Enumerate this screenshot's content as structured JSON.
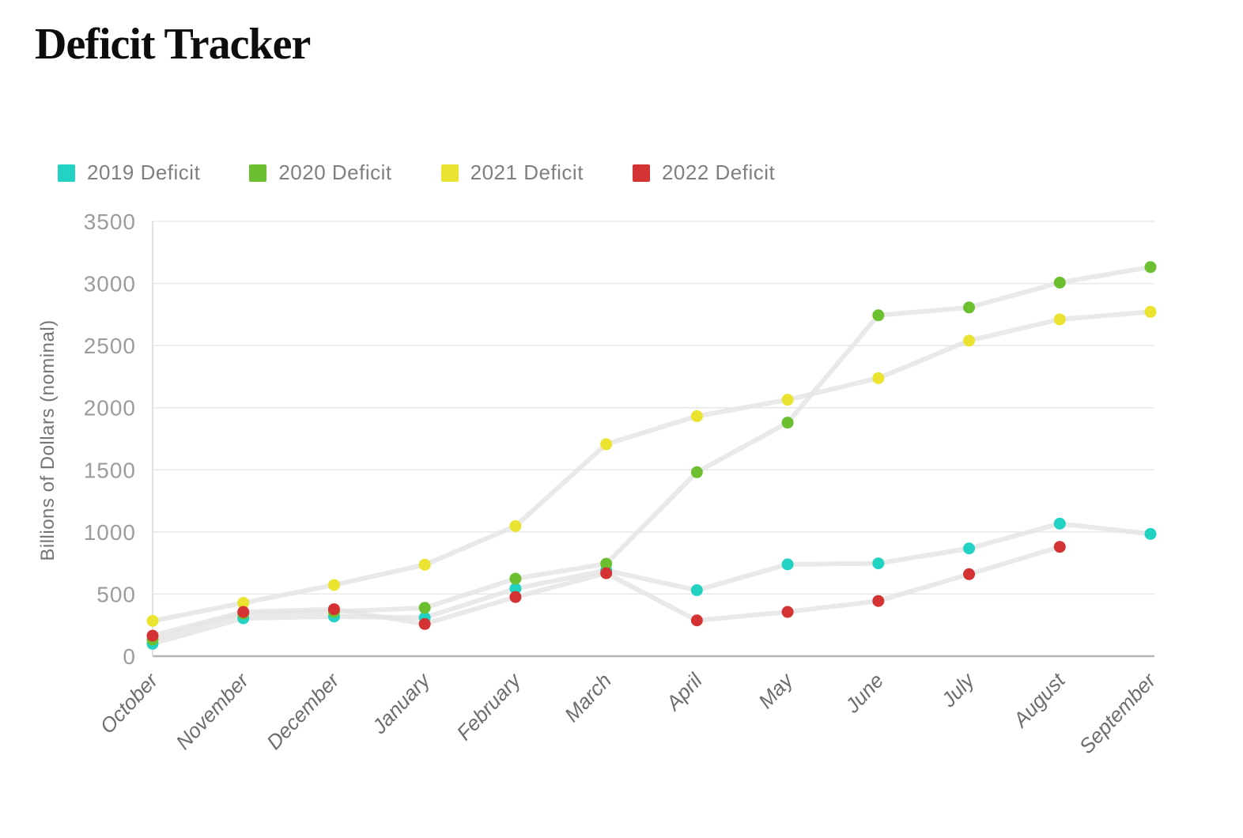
{
  "chart_data": {
    "type": "line",
    "title": "Deficit Tracker",
    "ylabel": "Billions of Dollars (nominal)",
    "ylim": [
      0,
      3500
    ],
    "yticks": [
      0,
      500,
      1000,
      1500,
      2000,
      2500,
      3000,
      3500
    ],
    "grid": true,
    "legend_position": "top-left",
    "connector_line_color": "#e3e3e3",
    "categories": [
      "October",
      "November",
      "December",
      "January",
      "February",
      "March",
      "April",
      "May",
      "June",
      "July",
      "August",
      "September"
    ],
    "series": [
      {
        "name": "2019 Deficit",
        "color": "#22d3c4",
        "values": [
          100,
          305,
          319,
          310,
          544,
          691,
          531,
          739,
          747,
          867,
          1067,
          984
        ]
      },
      {
        "name": "2020 Deficit",
        "color": "#6cc02f",
        "values": [
          134,
          343,
          357,
          389,
          624,
          744,
          1481,
          1880,
          2744,
          2807,
          3007,
          3132
        ]
      },
      {
        "name": "2021 Deficit",
        "color": "#eae430",
        "values": [
          284,
          429,
          573,
          736,
          1047,
          1706,
          1932,
          2064,
          2238,
          2540,
          2711,
          2772
        ]
      },
      {
        "name": "2022 Deficit",
        "color": "#d53333",
        "values": [
          165,
          356,
          378,
          259,
          476,
          668,
          288,
          356,
          444,
          660,
          880,
          null
        ]
      }
    ]
  }
}
